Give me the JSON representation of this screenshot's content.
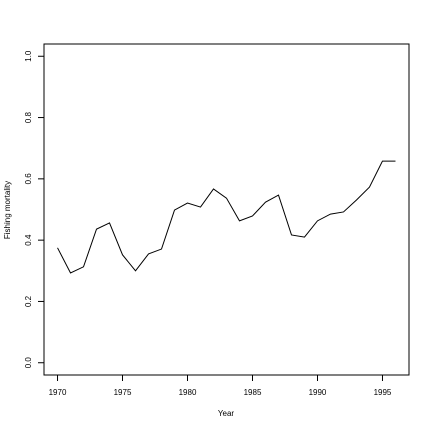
{
  "chart_data": {
    "type": "line",
    "x_label": "Year",
    "y_label": "Fishing mortality",
    "x": [
      1970,
      1971,
      1972,
      1973,
      1974,
      1975,
      1976,
      1977,
      1978,
      1979,
      1980,
      1981,
      1982,
      1983,
      1984,
      1985,
      1986,
      1987,
      1988,
      1989,
      1990,
      1991,
      1992,
      1993,
      1994,
      1995,
      1996
    ],
    "values": [
      0.375,
      0.293,
      0.313,
      0.436,
      0.456,
      0.352,
      0.3,
      0.355,
      0.371,
      0.498,
      0.521,
      0.508,
      0.567,
      0.537,
      0.463,
      0.479,
      0.524,
      0.547,
      0.417,
      0.41,
      0.463,
      0.485,
      0.492,
      0.531,
      0.573,
      0.658,
      0.658
    ],
    "color": "#000000",
    "xlim": [
      1968.96,
      1997.04
    ],
    "xticks": [
      1970,
      1975,
      1980,
      1985,
      1990,
      1995
    ],
    "ylim": [
      -0.04,
      1.04
    ],
    "yticks": [
      {
        "value": 0,
        "label": "0.0"
      },
      {
        "value": 0.2,
        "label": "0.2"
      },
      {
        "value": 0.4,
        "label": "0.4"
      },
      {
        "value": 0.6,
        "label": "0.6"
      },
      {
        "value": 0.8,
        "label": "0.8"
      },
      {
        "value": 1,
        "label": "1.0"
      }
    ]
  }
}
